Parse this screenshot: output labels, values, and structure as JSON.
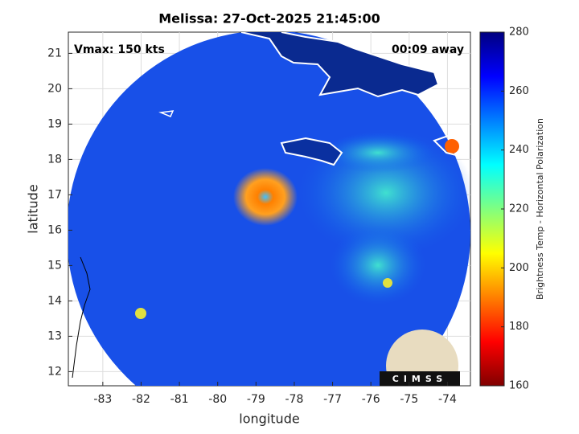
{
  "map": {
    "title": "Melissa: 27-Oct-2025 21:45:00",
    "vmax": "Vmax: 150 kts",
    "away": "00:09 away",
    "xlabel": "longitude",
    "ylabel": "latitude",
    "xlim": [
      -83.9,
      -73.4
    ],
    "ylim": [
      11.6,
      21.6
    ],
    "xticks": [
      -83,
      -82,
      -81,
      -80,
      -79,
      -78,
      -77,
      -76,
      -75,
      -74
    ],
    "yticks": [
      12,
      13,
      14,
      15,
      16,
      17,
      18,
      19,
      20,
      21
    ],
    "grid": true,
    "colorbar": {
      "label": "Brightness Temp - Horizontal Polarization",
      "lim": [
        160,
        280
      ],
      "ticks": [
        160,
        180,
        200,
        220,
        240,
        260,
        280
      ],
      "colormap": "jet"
    },
    "logo": "CIMSS"
  }
}
